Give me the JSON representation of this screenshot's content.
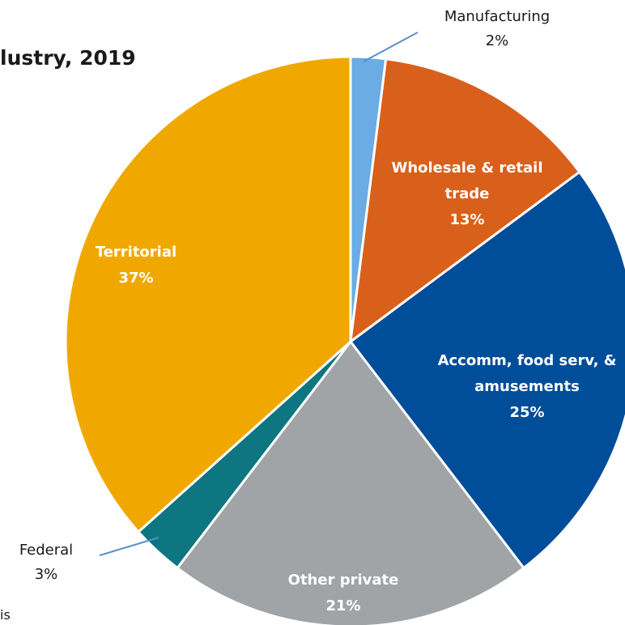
{
  "chart_data": {
    "type": "pie",
    "title": "lustry, 2019",
    "slices": [
      {
        "label": "Manufacturing",
        "lines": [
          "Manufacturing"
        ],
        "value": 2,
        "display": "2%",
        "color": "#6aace3",
        "label_position": "outside"
      },
      {
        "label": "Wholesale & retail trade",
        "lines": [
          "Wholesale & retail",
          "trade"
        ],
        "value": 13,
        "display": "13%",
        "color": "#d9601a",
        "label_position": "inside"
      },
      {
        "label": "Accomm, food serv, & amusements",
        "lines": [
          "Accomm, food serv, &",
          "amusements"
        ],
        "value": 25,
        "display": "25%",
        "color": "#004d99",
        "label_position": "inside"
      },
      {
        "label": "Other private",
        "lines": [
          "Other private"
        ],
        "value": 21,
        "display": "21%",
        "color": "#a0a4a6",
        "label_position": "inside"
      },
      {
        "label": "Federal",
        "lines": [
          "Federal"
        ],
        "value": 3,
        "display": "3%",
        "color": "#0d7680",
        "label_position": "outside"
      },
      {
        "label": "Territorial",
        "lines": [
          "Territorial"
        ],
        "value": 37,
        "display": "37%",
        "color": "#f0a800",
        "label_position": "inside"
      }
    ],
    "start_angle_deg": 0,
    "direction": "clockwise",
    "leader_line_color": "#5b8fc7",
    "legend": "none"
  },
  "footer": {
    "source_fragment": "is"
  }
}
